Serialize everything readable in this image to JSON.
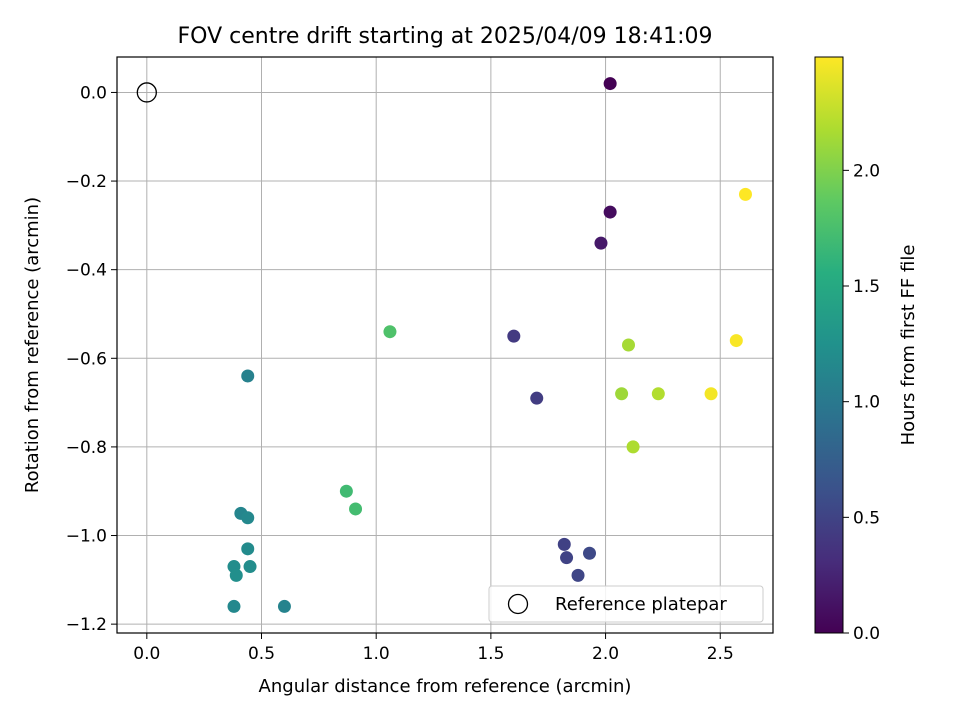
{
  "chart_data": {
    "type": "scatter",
    "title": "FOV centre drift starting at 2025/04/09 18:41:09",
    "xlabel": "Angular distance from reference (arcmin)",
    "ylabel": "Rotation from reference (arcmin)",
    "xlim": [
      -0.13,
      2.73
    ],
    "ylim": [
      -1.22,
      0.08
    ],
    "xticks": [
      0.0,
      0.5,
      1.0,
      1.5,
      2.0,
      2.5
    ],
    "xtick_labels": [
      "0.0",
      "0.5",
      "1.0",
      "1.5",
      "2.0",
      "2.5"
    ],
    "yticks": [
      0.0,
      -0.2,
      -0.4,
      -0.6,
      -0.8,
      -1.0,
      -1.2
    ],
    "ytick_labels": [
      "0.0",
      "−0.2",
      "−0.4",
      "−0.6",
      "−0.8",
      "−1.0",
      "−1.2"
    ],
    "grid": true,
    "colormap": "viridis",
    "colorbar": {
      "label": "Hours from first FF file",
      "range": [
        0.0,
        2.49
      ],
      "ticks": [
        0.0,
        0.5,
        1.0,
        1.5,
        2.0
      ],
      "tick_labels": [
        "0.0",
        "0.5",
        "1.0",
        "1.5",
        "2.0"
      ]
    },
    "legend": {
      "position": "lower-right",
      "entries": [
        "Reference platepar"
      ]
    },
    "reference_point": {
      "x": 0.0,
      "y": 0.0
    },
    "points": [
      {
        "x": 2.02,
        "y": 0.02,
        "hours": 0.0
      },
      {
        "x": 2.02,
        "y": -0.27,
        "hours": 0.08
      },
      {
        "x": 1.98,
        "y": -0.34,
        "hours": 0.17
      },
      {
        "x": 1.6,
        "y": -0.55,
        "hours": 0.42
      },
      {
        "x": 1.7,
        "y": -0.69,
        "hours": 0.45
      },
      {
        "x": 1.82,
        "y": -1.02,
        "hours": 0.48
      },
      {
        "x": 1.83,
        "y": -1.05,
        "hours": 0.5
      },
      {
        "x": 1.88,
        "y": -1.09,
        "hours": 0.52
      },
      {
        "x": 1.93,
        "y": -1.04,
        "hours": 0.55
      },
      {
        "x": 0.44,
        "y": -0.64,
        "hours": 1.08
      },
      {
        "x": 0.41,
        "y": -0.95,
        "hours": 1.12
      },
      {
        "x": 0.44,
        "y": -0.96,
        "hours": 1.15
      },
      {
        "x": 0.44,
        "y": -1.03,
        "hours": 1.18
      },
      {
        "x": 0.38,
        "y": -1.07,
        "hours": 1.2
      },
      {
        "x": 0.39,
        "y": -1.09,
        "hours": 1.22
      },
      {
        "x": 0.45,
        "y": -1.07,
        "hours": 1.2
      },
      {
        "x": 0.38,
        "y": -1.16,
        "hours": 1.15
      },
      {
        "x": 0.6,
        "y": -1.16,
        "hours": 1.1
      },
      {
        "x": 0.87,
        "y": -0.9,
        "hours": 1.7
      },
      {
        "x": 0.91,
        "y": -0.94,
        "hours": 1.72
      },
      {
        "x": 1.06,
        "y": -0.54,
        "hours": 1.78
      },
      {
        "x": 2.07,
        "y": -0.68,
        "hours": 2.12
      },
      {
        "x": 2.1,
        "y": -0.57,
        "hours": 2.15
      },
      {
        "x": 2.12,
        "y": -0.8,
        "hours": 2.18
      },
      {
        "x": 2.23,
        "y": -0.68,
        "hours": 2.2
      },
      {
        "x": 2.46,
        "y": -0.68,
        "hours": 2.45
      },
      {
        "x": 2.57,
        "y": -0.56,
        "hours": 2.47
      },
      {
        "x": 2.61,
        "y": -0.23,
        "hours": 2.49
      }
    ]
  }
}
